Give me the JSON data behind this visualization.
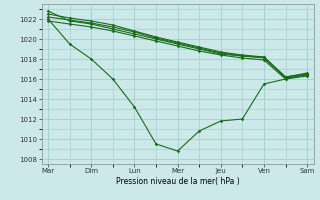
{
  "bg_color": "#cce8e8",
  "grid_color": "#99cccc",
  "line_color": "#1a6b1a",
  "xlabel": "Pression niveau de la mer( hPa )",
  "ylim": [
    1007.5,
    1023.5
  ],
  "yticks": [
    1008,
    1010,
    1012,
    1014,
    1016,
    1018,
    1020,
    1022
  ],
  "xlabels": [
    "Mar",
    "Dim",
    "Lun",
    "Mer",
    "Jeu",
    "Ven",
    "Sam"
  ],
  "x_tick_positions": [
    0,
    2,
    4,
    6,
    8,
    10,
    12
  ],
  "n_points": 13,
  "series": [
    [
      1022.8,
      1021.8,
      1021.5,
      1021.0,
      1020.5,
      1020.0,
      1019.5,
      1019.0,
      1018.5,
      1018.2,
      1018.0,
      1016.1,
      1016.5
    ],
    [
      1021.8,
      1021.5,
      1021.2,
      1020.8,
      1020.3,
      1019.8,
      1019.3,
      1018.8,
      1018.5,
      1018.2,
      1018.0,
      1016.0,
      1016.4
    ],
    [
      1022.0,
      1021.7,
      1021.3,
      1020.9,
      1020.4,
      1019.9,
      1019.4,
      1018.9,
      1018.5,
      1018.2,
      1018.0,
      1016.0,
      1016.5
    ],
    [
      1022.2,
      1021.6,
      1021.4,
      1021.0,
      1020.5,
      1019.9,
      1019.5,
      1018.9,
      1018.5,
      1018.2,
      1018.0,
      1016.1,
      1016.5
    ],
    [
      1022.0,
      1019.8,
      1018.0,
      1016.0,
      1013.2,
      1009.5,
      1008.8,
      1010.8,
      1011.8,
      1012.0,
      1015.5,
      1016.0,
      1016.5
    ]
  ],
  "series2_indices": [
    4
  ],
  "series2": {
    "x": [
      0,
      1,
      2,
      3,
      4,
      5,
      6,
      7,
      8,
      9,
      10,
      11,
      12
    ],
    "y": [
      1022.0,
      1019.8,
      1018.0,
      1016.0,
      1013.2,
      1009.5,
      1008.8,
      1010.8,
      1011.8,
      1012.0,
      1015.5,
      1016.0,
      1016.5
    ]
  }
}
